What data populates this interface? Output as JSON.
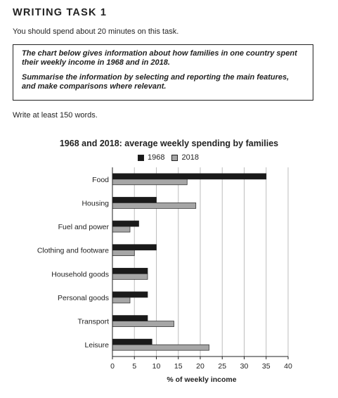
{
  "header": {
    "title": "WRITING TASK 1",
    "intro": "You should spend about 20 minutes on this task."
  },
  "prompt": {
    "line1": "The chart below gives information about how families in one country spent their weekly income in 1968 and in 2018.",
    "line2": "Summarise the information by selecting and reporting the main features, and make comparisons where relevant."
  },
  "instruction": "Write at least 150 words.",
  "colors": {
    "series_1968": "#1a1a1a",
    "series_2018": "#a6a6a6"
  },
  "chart_data": {
    "type": "bar",
    "orientation": "horizontal",
    "title": "1968 and 2018: average weekly spending by families",
    "xlabel": "% of weekly income",
    "ylabel": "",
    "categories": [
      "Food",
      "Housing",
      "Fuel and power",
      "Clothing and footware",
      "Household goods",
      "Personal goods",
      "Transport",
      "Leisure"
    ],
    "series": [
      {
        "name": "1968",
        "values": [
          35,
          10,
          6,
          10,
          8,
          8,
          8,
          9
        ]
      },
      {
        "name": "2018",
        "values": [
          17,
          19,
          4,
          5,
          8,
          4,
          14,
          22
        ]
      }
    ],
    "xlim": [
      0,
      40
    ],
    "xticks": [
      "0",
      "5",
      "10",
      "15",
      "20",
      "25",
      "30",
      "35",
      "40"
    ],
    "grid": "vertical",
    "legend_position": "top"
  }
}
